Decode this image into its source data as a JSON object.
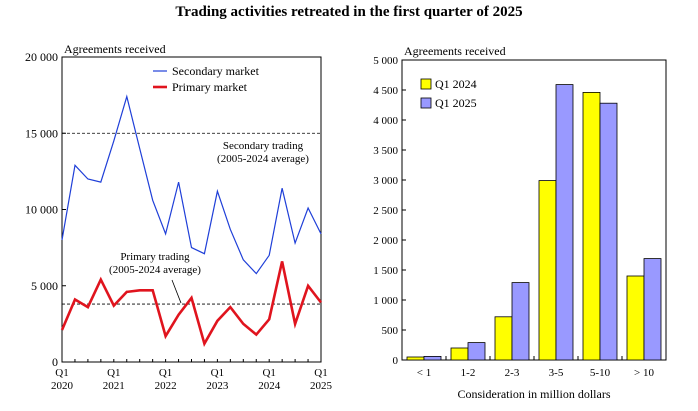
{
  "title": "Trading activities retreated in the first quarter of 2025",
  "chart_data": [
    {
      "type": "line",
      "ylabel": "Agreements received",
      "ylim": [
        0,
        20000
      ],
      "yticks": [
        0,
        5000,
        10000,
        15000,
        20000
      ],
      "ytick_labels": [
        "0",
        "5 000",
        "10 000",
        "15 000",
        "20 000"
      ],
      "xtick_labels": [
        {
          "q": "Q1",
          "year": "2020"
        },
        {
          "q": "Q1",
          "year": "2021"
        },
        {
          "q": "Q1",
          "year": "2022"
        },
        {
          "q": "Q1",
          "year": "2023"
        },
        {
          "q": "Q1",
          "year": "2024"
        },
        {
          "q": "Q1",
          "year": "2025"
        }
      ],
      "x": [
        "2020 Q1",
        "2020 Q2",
        "2020 Q3",
        "2020 Q4",
        "2021 Q1",
        "2021 Q2",
        "2021 Q3",
        "2021 Q4",
        "2022 Q1",
        "2022 Q2",
        "2022 Q3",
        "2022 Q4",
        "2023 Q1",
        "2023 Q2",
        "2023 Q3",
        "2023 Q4",
        "2024 Q1",
        "2024 Q2",
        "2024 Q3",
        "2024 Q4",
        "2025 Q1"
      ],
      "series": [
        {
          "name": "Secondary market",
          "color": "#1f3fd8",
          "values": [
            8000,
            12900,
            12000,
            11800,
            14500,
            17400,
            14000,
            10600,
            8400,
            11800,
            7500,
            7100,
            11200,
            8700,
            6700,
            5800,
            7000,
            11400,
            7800,
            10100,
            8400
          ]
        },
        {
          "name": "Primary market",
          "color": "#e0141e",
          "values": [
            2100,
            4100,
            3600,
            5400,
            3700,
            4600,
            4700,
            4700,
            1700,
            3100,
            4200,
            1200,
            2700,
            3600,
            2500,
            1800,
            2800,
            6600,
            2500,
            5000,
            3900
          ]
        }
      ],
      "reference_lines": [
        {
          "value": 15000,
          "label_line1": "Secondary trading",
          "label_line2": "(2005-2024 average)"
        },
        {
          "value": 3800,
          "label_line1": "Primary trading",
          "label_line2": "(2005-2024 average)"
        }
      ],
      "legend": "top-right",
      "grid": false
    },
    {
      "type": "bar",
      "ylabel": "Agreements received",
      "xlabel": "Consideration in million dollars",
      "ylim": [
        0,
        5000
      ],
      "yticks": [
        0,
        500,
        1000,
        1500,
        2000,
        2500,
        3000,
        3500,
        4000,
        4500,
        5000
      ],
      "ytick_labels": [
        "0",
        "500",
        "1 000",
        "1 500",
        "2 000",
        "2 500",
        "3 000",
        "3 500",
        "4 000",
        "4 500",
        "5 000"
      ],
      "categories": [
        "< 1",
        "1-2",
        "2-3",
        "3-5",
        "5-10",
        "> 10"
      ],
      "series": [
        {
          "name": "Q1 2024",
          "color": "#ffff00",
          "values": [
            50,
            200,
            720,
            2990,
            4460,
            1400
          ]
        },
        {
          "name": "Q1 2025",
          "color": "#9999ff",
          "values": [
            60,
            290,
            1290,
            4590,
            4280,
            1690
          ]
        }
      ],
      "legend": "top-left",
      "grid": false
    }
  ]
}
